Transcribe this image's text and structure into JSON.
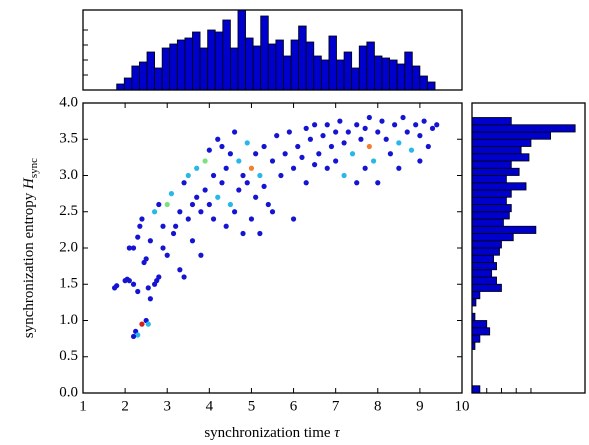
{
  "chart_data": [
    {
      "type": "scatter",
      "xlabel": "synchronization time",
      "xlabel_symbol": "τ",
      "ylabel": "synchronization entropy",
      "ylabel_symbol": "H",
      "ylabel_subscript": "sync",
      "xlim": [
        1,
        10
      ],
      "ylim": [
        0,
        4
      ],
      "xticks": [
        1,
        2,
        3,
        4,
        5,
        6,
        7,
        8,
        9,
        10
      ],
      "yticks": [
        {
          "value": 0,
          "label": "0.0"
        },
        {
          "value": 0.5,
          "label": "0.5"
        },
        {
          "value": 1,
          "label": "1.0"
        },
        {
          "value": 1.5,
          "label": "1.5"
        },
        {
          "value": 2,
          "label": "2.0"
        },
        {
          "value": 2.5,
          "label": "2.5"
        },
        {
          "value": 3,
          "label": "3.0"
        },
        {
          "value": 3.5,
          "label": "3.5"
        },
        {
          "value": 4,
          "label": "4.0"
        }
      ],
      "x": [
        1.75,
        1.8,
        2.0,
        2.05,
        2.1,
        2.2,
        2.3,
        2.1,
        2.2,
        2.3,
        2.35,
        2.4,
        2.45,
        2.5,
        2.55,
        2.6,
        2.7,
        2.75,
        2.8,
        2.6,
        2.7,
        2.8,
        2.9,
        2.9,
        3.0,
        3.0,
        3.1,
        3.15,
        3.2,
        3.3,
        3.3,
        3.4,
        3.4,
        3.5,
        3.5,
        3.6,
        3.6,
        3.7,
        3.7,
        3.8,
        3.8,
        3.9,
        3.9,
        4.0,
        4.0,
        4.1,
        4.1,
        4.2,
        4.2,
        4.3,
        4.3,
        4.4,
        4.4,
        4.5,
        4.5,
        4.6,
        4.6,
        4.7,
        4.7,
        4.8,
        4.8,
        4.9,
        4.9,
        5.0,
        5.0,
        5.1,
        5.1,
        5.2,
        5.2,
        5.3,
        5.3,
        5.4,
        5.5,
        5.5,
        5.6,
        5.7,
        5.8,
        5.9,
        6.0,
        6.0,
        6.1,
        6.2,
        6.3,
        6.3,
        6.4,
        6.5,
        6.5,
        6.6,
        6.7,
        6.8,
        6.8,
        6.9,
        7.0,
        7.0,
        7.1,
        7.2,
        7.2,
        7.3,
        7.4,
        7.5,
        7.5,
        7.6,
        7.7,
        7.7,
        7.8,
        7.8,
        7.9,
        8.0,
        8.0,
        8.1,
        8.2,
        8.3,
        8.4,
        8.5,
        8.5,
        8.6,
        8.7,
        8.8,
        8.9,
        9.0,
        9.0,
        9.1,
        9.2,
        9.3,
        9.4,
        2.25,
        2.3,
        2.4,
        2.5,
        2.55,
        2.2
      ],
      "y": [
        1.45,
        1.48,
        1.55,
        1.57,
        1.55,
        1.5,
        1.4,
        2.0,
        2.0,
        2.15,
        2.3,
        2.4,
        1.8,
        1.85,
        1.45,
        1.3,
        1.5,
        1.55,
        1.6,
        2.1,
        2.5,
        2.6,
        2.3,
        2.0,
        1.9,
        2.6,
        2.75,
        2.2,
        2.3,
        2.5,
        1.7,
        1.6,
        2.9,
        3.0,
        2.4,
        2.6,
        2.1,
        2.7,
        3.1,
        2.5,
        1.9,
        2.8,
        3.2,
        3.35,
        2.6,
        2.4,
        3.0,
        2.7,
        3.5,
        3.4,
        2.9,
        2.3,
        3.1,
        2.6,
        3.3,
        2.5,
        3.6,
        2.8,
        3.2,
        2.2,
        3.0,
        2.9,
        3.45,
        3.1,
        2.4,
        3.3,
        2.7,
        3.0,
        2.2,
        2.85,
        3.4,
        2.6,
        3.2,
        2.5,
        3.55,
        3.0,
        3.3,
        3.6,
        3.1,
        2.4,
        3.4,
        3.25,
        3.65,
        2.9,
        3.5,
        3.15,
        3.7,
        3.3,
        3.55,
        3.1,
        3.7,
        3.4,
        3.2,
        3.6,
        3.75,
        3.45,
        3.0,
        3.6,
        3.3,
        3.7,
        2.9,
        3.5,
        3.65,
        3.1,
        3.8,
        3.4,
        3.2,
        3.6,
        2.9,
        3.75,
        3.5,
        3.3,
        3.7,
        3.45,
        3.1,
        3.8,
        3.6,
        3.35,
        3.7,
        3.55,
        3.2,
        3.75,
        3.4,
        3.65,
        3.7,
        0.85,
        0.8,
        0.95,
        1.0,
        0.95,
        0.78
      ],
      "colors": [
        "#1414d2",
        "#1414d2",
        "#1414d2",
        "#1414d2",
        "#1414d2",
        "#1414d2",
        "#1414d2",
        "#1414d2",
        "#1414d2",
        "#1414d2",
        "#1414d2",
        "#1414d2",
        "#1414d2",
        "#1414d2",
        "#1414d2",
        "#1414d2",
        "#1414d2",
        "#1414d2",
        "#1414d2",
        "#1414d2",
        "#28b8e8",
        "#1414d2",
        "#1414d2",
        "#1414d2",
        "#1414d2",
        "#7de07d",
        "#28b8e8",
        "#1414d2",
        "#1414d2",
        "#1414d2",
        "#1414d2",
        "#1414d2",
        "#1414d2",
        "#28b8e8",
        "#1414d2",
        "#1414d2",
        "#1414d2",
        "#1414d2",
        "#28b8e8",
        "#1414d2",
        "#1414d2",
        "#1414d2",
        "#7de07d",
        "#1414d2",
        "#1414d2",
        "#1414d2",
        "#1414d2",
        "#28b8e8",
        "#1414d2",
        "#1414d2",
        "#1414d2",
        "#1414d2",
        "#1414d2",
        "#28b8e8",
        "#1414d2",
        "#1414d2",
        "#1414d2",
        "#1414d2",
        "#28b8e8",
        "#1414d2",
        "#1414d2",
        "#1414d2",
        "#28b8e8",
        "#f08030",
        "#1414d2",
        "#1414d2",
        "#1414d2",
        "#28b8e8",
        "#1414d2",
        "#1414d2",
        "#1414d2",
        "#1414d2",
        "#1414d2",
        "#1414d2",
        "#1414d2",
        "#1414d2",
        "#1414d2",
        "#1414d2",
        "#1414d2",
        "#1414d2",
        "#1414d2",
        "#1414d2",
        "#1414d2",
        "#1414d2",
        "#1414d2",
        "#1414d2",
        "#1414d2",
        "#1414d2",
        "#1414d2",
        "#1414d2",
        "#1414d2",
        "#1414d2",
        "#1414d2",
        "#1414d2",
        "#1414d2",
        "#1414d2",
        "#28b8e8",
        "#1414d2",
        "#28b8e8",
        "#1414d2",
        "#1414d2",
        "#1414d2",
        "#1414d2",
        "#1414d2",
        "#1414d2",
        "#f08030",
        "#28b8e8",
        "#1414d2",
        "#1414d2",
        "#1414d2",
        "#1414d2",
        "#1414d2",
        "#1414d2",
        "#28b8e8",
        "#1414d2",
        "#1414d2",
        "#1414d2",
        "#28b8e8",
        "#1414d2",
        "#1414d2",
        "#1414d2",
        "#1414d2",
        "#1414d2",
        "#1414d2",
        "#1414d2",
        "#1414d2",
        "#28b8e8",
        "#d02020",
        "#1414d2",
        "#28b8e8",
        "#1414d2"
      ]
    },
    {
      "type": "histogram",
      "color": "#0000cc",
      "xlim": [
        1,
        10
      ],
      "ylim": [
        0,
        80
      ],
      "yticks": [
        15,
        30,
        45,
        60
      ],
      "bins": [
        1.8,
        1.98,
        2.16,
        2.34,
        2.52,
        2.7,
        2.88,
        3.06,
        3.24,
        3.42,
        3.6,
        3.78,
        3.96,
        4.14,
        4.32,
        4.5,
        4.68,
        4.86,
        5.04,
        5.22,
        5.4,
        5.58,
        5.76,
        5.94,
        6.12,
        6.3,
        6.48,
        6.66,
        6.84,
        7.02,
        7.2,
        7.38,
        7.56,
        7.74,
        7.92,
        8.1,
        8.28,
        8.46,
        8.64,
        8.82,
        9.0,
        9.18,
        9.36
      ],
      "values": [
        6,
        12,
        24,
        28,
        38,
        22,
        42,
        46,
        50,
        52,
        58,
        42,
        60,
        58,
        70,
        42,
        80,
        52,
        44,
        74,
        46,
        50,
        34,
        50,
        64,
        48,
        34,
        30,
        54,
        30,
        38,
        22,
        44,
        48,
        34,
        32,
        30,
        26,
        38,
        24,
        14,
        8
      ]
    },
    {
      "type": "histogram",
      "orientation": "horizontal",
      "color": "#0000cc",
      "xlim": [
        0,
        115
      ],
      "xticks": [
        15,
        30,
        45,
        60
      ],
      "ylim": [
        0,
        4
      ],
      "bins": [
        0,
        0.1,
        0.2,
        0.3,
        0.4,
        0.5,
        0.6,
        0.7,
        0.8,
        0.9,
        1.0,
        1.1,
        1.2,
        1.3,
        1.4,
        1.5,
        1.6,
        1.7,
        1.8,
        1.9,
        2.0,
        2.1,
        2.2,
        2.3,
        2.4,
        2.5,
        2.6,
        2.7,
        2.8,
        2.9,
        3.0,
        3.1,
        3.2,
        3.3,
        3.4,
        3.5,
        3.6,
        3.7,
        3.8
      ],
      "values": [
        8,
        0,
        0,
        0,
        0,
        0,
        3,
        8,
        18,
        15,
        3,
        0,
        4,
        8,
        30,
        25,
        20,
        25,
        22,
        28,
        30,
        42,
        65,
        32,
        38,
        40,
        35,
        40,
        55,
        35,
        48,
        40,
        58,
        50,
        60,
        80,
        105,
        40
      ]
    }
  ]
}
